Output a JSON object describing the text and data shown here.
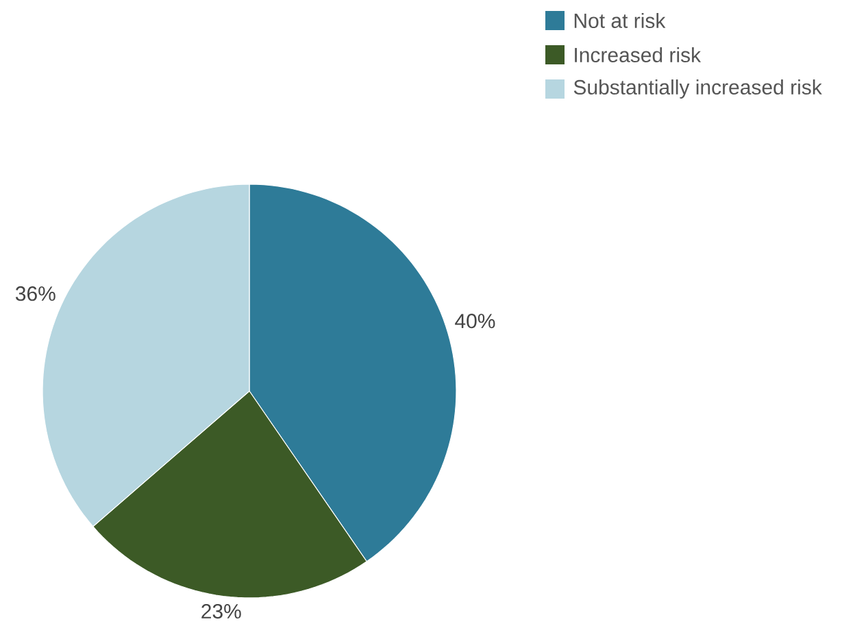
{
  "chart_data": {
    "type": "pie",
    "categories": [
      "Not at risk",
      "Increased risk",
      "Substantially increased risk"
    ],
    "values": [
      40,
      23,
      36
    ],
    "value_labels": [
      "40%",
      "23%",
      "36%"
    ],
    "colors": [
      "#2e7b98",
      "#3c5a26",
      "#b6d6e0"
    ],
    "legend": "top right"
  }
}
